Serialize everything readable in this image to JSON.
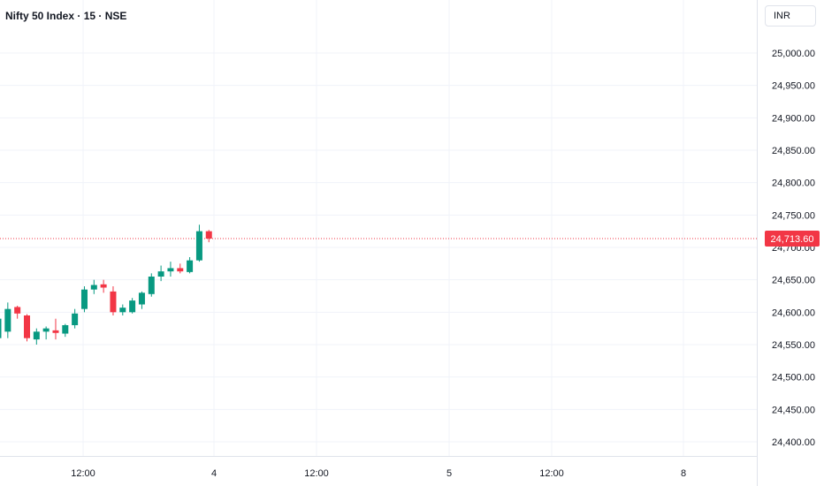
{
  "header": {
    "title": "Nifty 50 Index · 15 · NSE",
    "currency": "INR"
  },
  "colors": {
    "up": "#089981",
    "down": "#f23645",
    "grid": "#f0f3fa",
    "axis_text": "#131722",
    "price_line": "#f23645"
  },
  "chart_data": {
    "type": "candlestick",
    "symbol": "Nifty 50 Index",
    "interval": "15",
    "exchange": "NSE",
    "y_ticks": [
      {
        "value": 25000,
        "label": "25,000.00"
      },
      {
        "value": 24950,
        "label": "24,950.00"
      },
      {
        "value": 24900,
        "label": "24,900.00"
      },
      {
        "value": 24850,
        "label": "24,850.00"
      },
      {
        "value": 24800,
        "label": "24,800.00"
      },
      {
        "value": 24750,
        "label": "24,750.00"
      },
      {
        "value": 24700,
        "label": "24,700.00"
      },
      {
        "value": 24650,
        "label": "24,650.00"
      },
      {
        "value": 24600,
        "label": "24,600.00"
      },
      {
        "value": 24550,
        "label": "24,550.00"
      },
      {
        "value": 24500,
        "label": "24,500.00"
      },
      {
        "value": 24450,
        "label": "24,450.00"
      },
      {
        "value": 24400,
        "label": "24,400.00"
      }
    ],
    "x_ticks": [
      "12:00",
      "4",
      "12:00",
      "5",
      "12:00",
      "8"
    ],
    "last_price": 24713.6,
    "last_price_label": "24,713.60",
    "candles": [
      {
        "o": 24560,
        "h": 24600,
        "l": 24545,
        "c": 24590
      },
      {
        "o": 24570,
        "h": 24615,
        "l": 24560,
        "c": 24605
      },
      {
        "o": 24608,
        "h": 24610,
        "l": 24590,
        "c": 24598
      },
      {
        "o": 24595,
        "h": 24597,
        "l": 24555,
        "c": 24560
      },
      {
        "o": 24558,
        "h": 24575,
        "l": 24550,
        "c": 24570
      },
      {
        "o": 24570,
        "h": 24578,
        "l": 24558,
        "c": 24575
      },
      {
        "o": 24572,
        "h": 24590,
        "l": 24558,
        "c": 24568
      },
      {
        "o": 24567,
        "h": 24582,
        "l": 24562,
        "c": 24580
      },
      {
        "o": 24580,
        "h": 24605,
        "l": 24575,
        "c": 24598
      },
      {
        "o": 24605,
        "h": 24640,
        "l": 24600,
        "c": 24635
      },
      {
        "o": 24635,
        "h": 24650,
        "l": 24628,
        "c": 24642
      },
      {
        "o": 24643,
        "h": 24650,
        "l": 24630,
        "c": 24638
      },
      {
        "o": 24632,
        "h": 24640,
        "l": 24595,
        "c": 24600
      },
      {
        "o": 24600,
        "h": 24612,
        "l": 24595,
        "c": 24607
      },
      {
        "o": 24600,
        "h": 24622,
        "l": 24598,
        "c": 24618
      },
      {
        "o": 24612,
        "h": 24632,
        "l": 24605,
        "c": 24630
      },
      {
        "o": 24628,
        "h": 24660,
        "l": 24624,
        "c": 24655
      },
      {
        "o": 24655,
        "h": 24672,
        "l": 24648,
        "c": 24663
      },
      {
        "o": 24663,
        "h": 24678,
        "l": 24655,
        "c": 24668
      },
      {
        "o": 24668,
        "h": 24675,
        "l": 24660,
        "c": 24663
      },
      {
        "o": 24662,
        "h": 24685,
        "l": 24660,
        "c": 24680
      },
      {
        "o": 24680,
        "h": 24735,
        "l": 24678,
        "c": 24725
      },
      {
        "o": 24725,
        "h": 24727,
        "l": 24708,
        "c": 24713.6
      }
    ]
  }
}
